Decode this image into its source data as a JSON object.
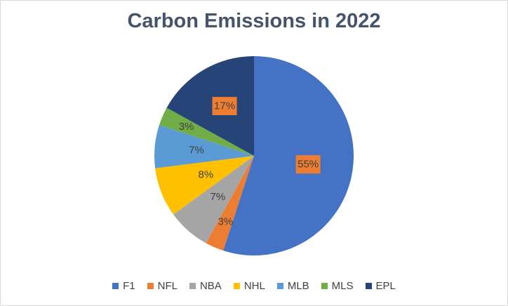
{
  "chart_data": {
    "type": "pie",
    "title": "Carbon Emissions in 2022",
    "categories": [
      "F1",
      "NFL",
      "NBA",
      "NHL",
      "MLB",
      "MLS",
      "EPL"
    ],
    "values": [
      55,
      3,
      7,
      8,
      7,
      3,
      17
    ],
    "labels": [
      "55%",
      "3%",
      "7%",
      "8%",
      "7%",
      "3%",
      "17%"
    ],
    "colors": [
      "#4472c4",
      "#ed7d31",
      "#a5a5a5",
      "#ffc000",
      "#5b9bd5",
      "#70ad47",
      "#264478"
    ],
    "legend_position": "bottom"
  }
}
